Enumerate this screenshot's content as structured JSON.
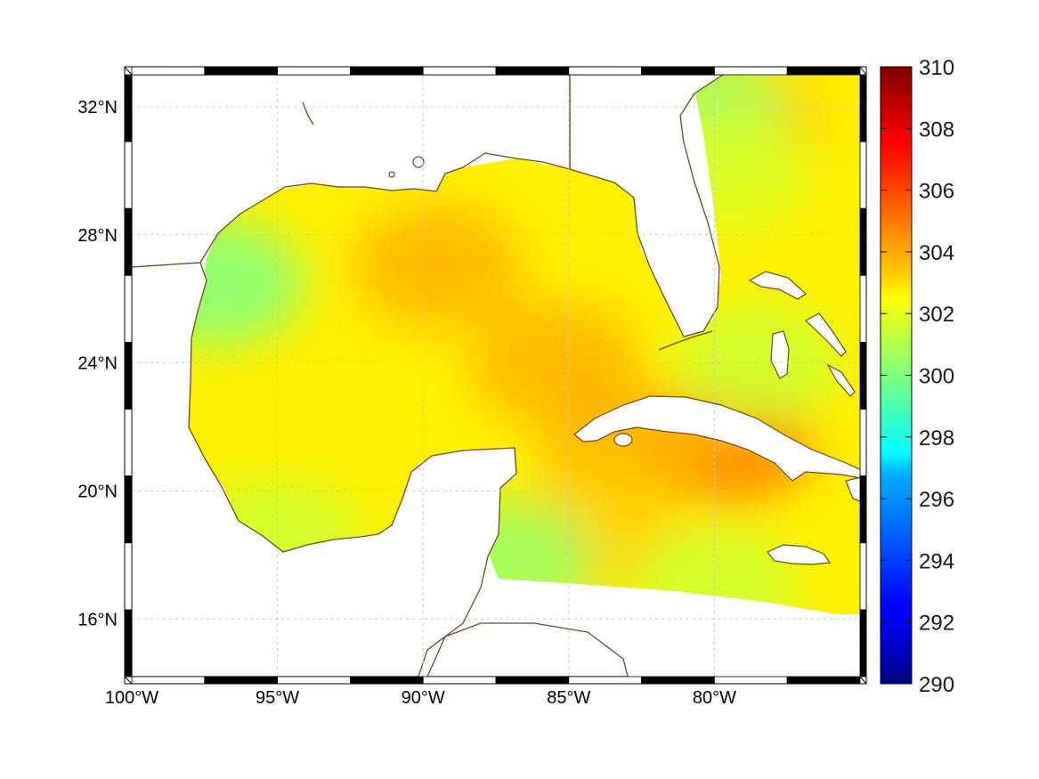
{
  "map": {
    "projection": "equirectangular",
    "lon_range": [
      -100,
      -75
    ],
    "lat_range": [
      14.2,
      33
    ],
    "lon_ticks": [
      {
        "lon": -100,
        "label": "100°W"
      },
      {
        "lon": -95,
        "label": "95°W"
      },
      {
        "lon": -90,
        "label": "90°W"
      },
      {
        "lon": -85,
        "label": "85°W"
      },
      {
        "lon": -80,
        "label": "80°W"
      }
    ],
    "lat_ticks": [
      {
        "lat": 32,
        "label": "32°N"
      },
      {
        "lat": 28,
        "label": "28°N"
      },
      {
        "lat": 24,
        "label": "24°N"
      },
      {
        "lat": 20,
        "label": "20°N"
      },
      {
        "lat": 16,
        "label": "16°N"
      }
    ],
    "grid": true,
    "frame_style": "alternating black-white border",
    "coastline_color": "#6b4a1a",
    "field": {
      "description_units": "K",
      "background_value": 302.8,
      "hotspots": [
        {
          "lon": -89.5,
          "lat": 27.0,
          "value": 304.0
        },
        {
          "lon": -85.5,
          "lat": 24.0,
          "value": 304.0
        },
        {
          "lon": -79.5,
          "lat": 21.5,
          "value": 305.0
        },
        {
          "lon": -83.0,
          "lat": 21.5,
          "value": 304.0
        },
        {
          "lon": -84.0,
          "lat": 19.0,
          "value": 303.5
        },
        {
          "lon": -79.0,
          "lat": 31.5,
          "value": 303.5
        }
      ],
      "coolspots": [
        {
          "lon": -97.0,
          "lat": 26.5,
          "value": 300.0
        },
        {
          "lon": -80.5,
          "lat": 31.8,
          "value": 300.5
        },
        {
          "lon": -95.0,
          "lat": 18.5,
          "value": 301.5
        },
        {
          "lon": -87.0,
          "lat": 17.8,
          "value": 300.5
        },
        {
          "lon": -80.0,
          "lat": 17.0,
          "value": 301.5
        },
        {
          "lon": -78.5,
          "lat": 24.0,
          "value": 301.5
        },
        {
          "lon": -79.5,
          "lat": 30.0,
          "value": 301.8
        }
      ]
    }
  },
  "colorbar": {
    "min": 290,
    "max": 310,
    "colormap": "jet",
    "ticks": [
      "290",
      "292",
      "294",
      "296",
      "298",
      "300",
      "302",
      "304",
      "306",
      "308",
      "310"
    ]
  }
}
